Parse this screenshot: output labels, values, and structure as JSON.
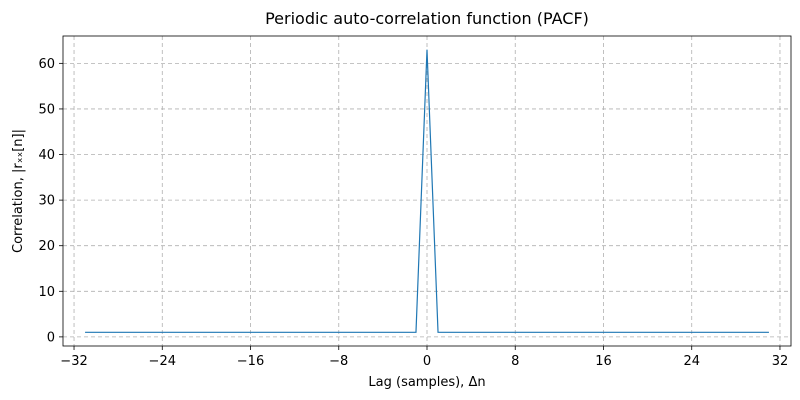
{
  "chart_data": {
    "type": "line",
    "title": "Periodic auto-correlation function (PACF)",
    "xlabel": "Lag (samples), Δn",
    "ylabel": "Correlation, |rₓₓ[n]|",
    "xlim": [
      -33,
      33
    ],
    "ylim": [
      -2,
      66
    ],
    "x_ticks": [
      -32,
      -24,
      -16,
      -8,
      0,
      8,
      16,
      24,
      32
    ],
    "x_tick_labels": [
      "−32",
      "−24",
      "−16",
      "−8",
      "0",
      "8",
      "16",
      "24",
      "32"
    ],
    "y_ticks": [
      0,
      10,
      20,
      30,
      40,
      50,
      60
    ],
    "y_tick_labels": [
      "0",
      "10",
      "20",
      "30",
      "40",
      "50",
      "60"
    ],
    "grid": true,
    "series": [
      {
        "color": "#1f77b4",
        "x": [
          -31,
          -1,
          0,
          1,
          31
        ],
        "y": [
          1,
          1,
          63,
          1,
          1
        ]
      }
    ]
  }
}
